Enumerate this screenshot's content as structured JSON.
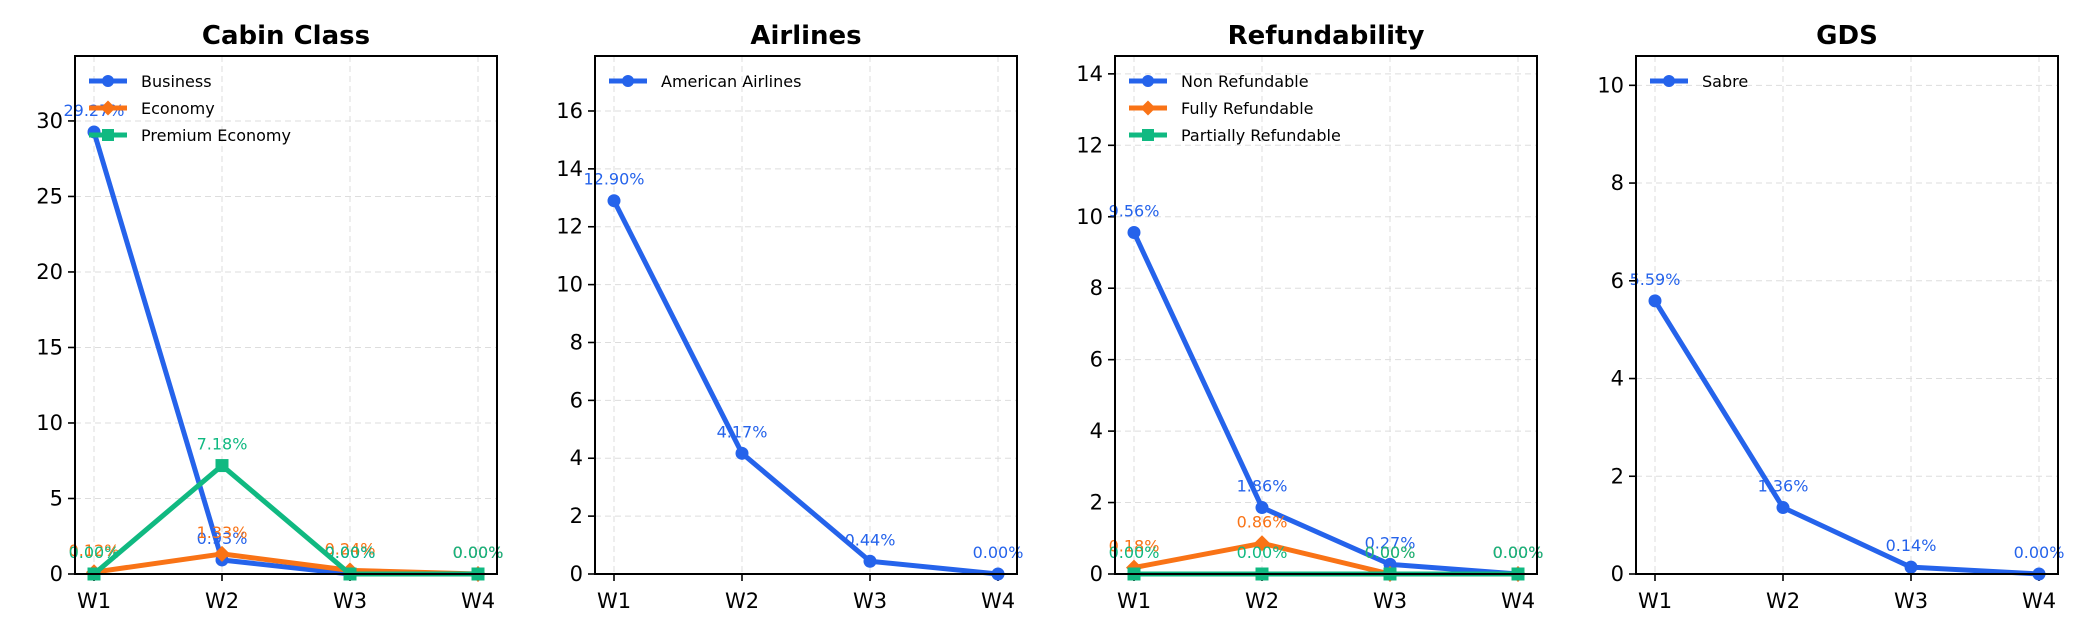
{
  "chart_data": [
    {
      "type": "line",
      "title": "Cabin Class",
      "categories": [
        "W1",
        "W2",
        "W3",
        "W4"
      ],
      "ylim": [
        0,
        34.3
      ],
      "yticks": [
        0,
        5,
        10,
        15,
        20,
        25,
        30
      ],
      "legend": "top-left",
      "grid": true,
      "series": [
        {
          "name": "Business",
          "values": [
            29.27,
            0.93,
            0.0,
            0.0
          ],
          "labels": [
            "29.27%",
            "0.93%",
            "0.00%",
            "0.00%"
          ],
          "color": "#2563eb",
          "marker": "circle"
        },
        {
          "name": "Economy",
          "values": [
            0.12,
            1.33,
            0.24,
            0.0
          ],
          "labels": [
            "0.12%",
            "1.33%",
            "0.24%",
            "0.00%"
          ],
          "color": "#f97316",
          "marker": "diamond"
        },
        {
          "name": "Premium Economy",
          "values": [
            0.0,
            7.18,
            0.0,
            0.0
          ],
          "labels": [
            "0.00%",
            "7.18%",
            "0.00%",
            "0.00%"
          ],
          "color": "#10b981",
          "marker": "square"
        }
      ]
    },
    {
      "type": "line",
      "title": "Airlines",
      "categories": [
        "W1",
        "W2",
        "W3",
        "W4"
      ],
      "ylim": [
        0,
        17.9
      ],
      "yticks": [
        0,
        2,
        4,
        6,
        8,
        10,
        12,
        14,
        16
      ],
      "legend": "top-left",
      "grid": true,
      "series": [
        {
          "name": "American Airlines",
          "values": [
            12.9,
            4.17,
            0.44,
            0.0
          ],
          "labels": [
            "12.90%",
            "4.17%",
            "0.44%",
            "0.00%"
          ],
          "color": "#2563eb",
          "marker": "circle"
        }
      ]
    },
    {
      "type": "line",
      "title": "Refundability",
      "categories": [
        "W1",
        "W2",
        "W3",
        "W4"
      ],
      "ylim": [
        0,
        14.5
      ],
      "yticks": [
        0,
        2,
        4,
        6,
        8,
        10,
        12,
        14
      ],
      "legend": "top-left",
      "grid": true,
      "series": [
        {
          "name": "Non Refundable",
          "values": [
            9.56,
            1.86,
            0.27,
            0.0
          ],
          "labels": [
            "9.56%",
            "1.86%",
            "0.27%",
            "0.00%"
          ],
          "color": "#2563eb",
          "marker": "circle"
        },
        {
          "name": "Fully Refundable",
          "values": [
            0.18,
            0.86,
            0.0,
            0.0
          ],
          "labels": [
            "0.18%",
            "0.86%",
            "0.00%",
            "0.00%"
          ],
          "color": "#f97316",
          "marker": "diamond"
        },
        {
          "name": "Partially Refundable",
          "values": [
            0.0,
            0.0,
            0.0,
            0.0
          ],
          "labels": [
            "0.00%",
            "0.00%",
            "0.00%",
            "0.00%"
          ],
          "color": "#10b981",
          "marker": "square"
        }
      ]
    },
    {
      "type": "line",
      "title": "GDS",
      "categories": [
        "W1",
        "W2",
        "W3",
        "W4"
      ],
      "ylim": [
        0,
        10.6
      ],
      "yticks": [
        0,
        2,
        4,
        6,
        8,
        10
      ],
      "legend": "top-left",
      "grid": true,
      "series": [
        {
          "name": "Sabre",
          "values": [
            5.59,
            1.36,
            0.14,
            0.0
          ],
          "labels": [
            "5.59%",
            "1.36%",
            "0.14%",
            "0.00%"
          ],
          "color": "#2563eb",
          "marker": "circle"
        }
      ]
    }
  ]
}
